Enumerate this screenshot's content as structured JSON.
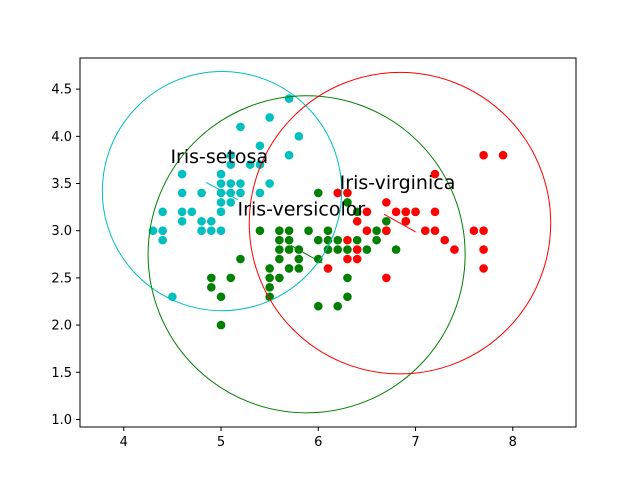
{
  "chart_data": {
    "type": "scatter",
    "title": "",
    "xlabel": "",
    "ylabel": "",
    "xlim": [
      3.55,
      8.65
    ],
    "ylim": [
      0.92,
      4.83
    ],
    "grid": false,
    "x_ticks": [
      "4",
      "5",
      "6",
      "7",
      "8"
    ],
    "y_ticks": [
      "1.0",
      "1.5",
      "2.0",
      "2.5",
      "3.0",
      "3.5",
      "4.0",
      "4.5"
    ],
    "series": [
      {
        "name": "Iris-setosa",
        "color": "#00bfbf",
        "points": [
          [
            4.3,
            3.0
          ],
          [
            4.4,
            2.9
          ],
          [
            4.4,
            3.0
          ],
          [
            4.4,
            3.2
          ],
          [
            4.5,
            2.3
          ],
          [
            4.6,
            3.1
          ],
          [
            4.6,
            3.2
          ],
          [
            4.6,
            3.4
          ],
          [
            4.6,
            3.6
          ],
          [
            4.7,
            3.2
          ],
          [
            4.8,
            3.0
          ],
          [
            4.8,
            3.1
          ],
          [
            4.8,
            3.4
          ],
          [
            4.9,
            3.0
          ],
          [
            4.9,
            3.1
          ],
          [
            5.0,
            3.0
          ],
          [
            5.0,
            3.2
          ],
          [
            5.0,
            3.3
          ],
          [
            5.0,
            3.4
          ],
          [
            5.0,
            3.5
          ],
          [
            5.0,
            3.6
          ],
          [
            5.1,
            3.3
          ],
          [
            5.1,
            3.4
          ],
          [
            5.1,
            3.5
          ],
          [
            5.1,
            3.7
          ],
          [
            5.1,
            3.8
          ],
          [
            5.2,
            3.4
          ],
          [
            5.2,
            3.5
          ],
          [
            5.2,
            4.1
          ],
          [
            5.3,
            3.7
          ],
          [
            5.4,
            3.4
          ],
          [
            5.4,
            3.7
          ],
          [
            5.4,
            3.9
          ],
          [
            5.5,
            3.5
          ],
          [
            5.5,
            4.2
          ],
          [
            5.7,
            3.8
          ],
          [
            5.7,
            4.4
          ],
          [
            5.8,
            4.0
          ]
        ],
        "center": [
          5.01,
          3.42
        ],
        "radius": 1.23
      },
      {
        "name": "Iris-versicolor",
        "color": "#008000",
        "points": [
          [
            4.9,
            2.4
          ],
          [
            4.9,
            2.5
          ],
          [
            5.0,
            2.0
          ],
          [
            5.0,
            2.3
          ],
          [
            5.1,
            2.5
          ],
          [
            5.2,
            2.7
          ],
          [
            5.4,
            3.0
          ],
          [
            5.5,
            2.3
          ],
          [
            5.5,
            2.4
          ],
          [
            5.5,
            2.5
          ],
          [
            5.5,
            2.6
          ],
          [
            5.6,
            2.5
          ],
          [
            5.6,
            2.7
          ],
          [
            5.6,
            2.8
          ],
          [
            5.6,
            2.9
          ],
          [
            5.6,
            3.0
          ],
          [
            5.7,
            2.6
          ],
          [
            5.7,
            2.8
          ],
          [
            5.7,
            2.9
          ],
          [
            5.7,
            3.0
          ],
          [
            5.8,
            2.6
          ],
          [
            5.8,
            2.7
          ],
          [
            5.8,
            2.8
          ],
          [
            5.9,
            3.0
          ],
          [
            6.0,
            2.2
          ],
          [
            6.0,
            2.7
          ],
          [
            6.0,
            2.9
          ],
          [
            6.0,
            3.4
          ],
          [
            6.1,
            2.8
          ],
          [
            6.1,
            2.9
          ],
          [
            6.1,
            3.0
          ],
          [
            6.2,
            2.2
          ],
          [
            6.2,
            2.9
          ],
          [
            6.3,
            2.3
          ],
          [
            6.3,
            2.5
          ],
          [
            6.3,
            3.3
          ],
          [
            6.4,
            2.9
          ],
          [
            6.4,
            3.2
          ],
          [
            6.5,
            2.8
          ],
          [
            6.6,
            2.9
          ],
          [
            6.6,
            3.0
          ],
          [
            6.7,
            3.0
          ],
          [
            6.7,
            3.1
          ],
          [
            6.8,
            2.8
          ],
          [
            6.9,
            3.1
          ],
          [
            7.0,
            3.2
          ],
          [
            6.2,
            2.8
          ],
          [
            6.3,
            2.8
          ]
        ],
        "center": [
          5.88,
          2.75
        ],
        "radius": 1.63
      },
      {
        "name": "Iris-virginica",
        "color": "#ff0000",
        "points": [
          [
            6.1,
            2.6
          ],
          [
            6.2,
            3.4
          ],
          [
            6.3,
            2.7
          ],
          [
            6.3,
            2.9
          ],
          [
            6.3,
            3.4
          ],
          [
            6.4,
            2.7
          ],
          [
            6.4,
            2.8
          ],
          [
            6.4,
            3.1
          ],
          [
            6.5,
            3.0
          ],
          [
            6.5,
            3.2
          ],
          [
            6.7,
            2.5
          ],
          [
            6.7,
            3.3
          ],
          [
            6.8,
            3.2
          ],
          [
            6.9,
            3.1
          ],
          [
            6.9,
            3.2
          ],
          [
            7.0,
            3.2
          ],
          [
            7.1,
            3.0
          ],
          [
            7.2,
            3.0
          ],
          [
            7.2,
            3.2
          ],
          [
            7.2,
            3.6
          ],
          [
            7.3,
            2.9
          ],
          [
            7.4,
            2.8
          ],
          [
            7.6,
            3.0
          ],
          [
            7.7,
            2.6
          ],
          [
            7.7,
            2.8
          ],
          [
            7.7,
            3.0
          ],
          [
            7.7,
            3.8
          ],
          [
            7.9,
            3.8
          ],
          [
            6.9,
            3.2
          ],
          [
            6.7,
            3.0
          ]
        ],
        "center": [
          6.84,
          3.08
        ],
        "radius": 1.55
      }
    ],
    "annotations": [
      {
        "text": "Iris-setosa",
        "series": 0,
        "text_at": [
          4.48,
          3.72
        ]
      },
      {
        "text": "Iris-versicolor",
        "series": 1,
        "text_at": [
          5.17,
          3.16
        ]
      },
      {
        "text": "Iris-virginica",
        "series": 2,
        "text_at": [
          6.22,
          3.44
        ]
      }
    ]
  }
}
